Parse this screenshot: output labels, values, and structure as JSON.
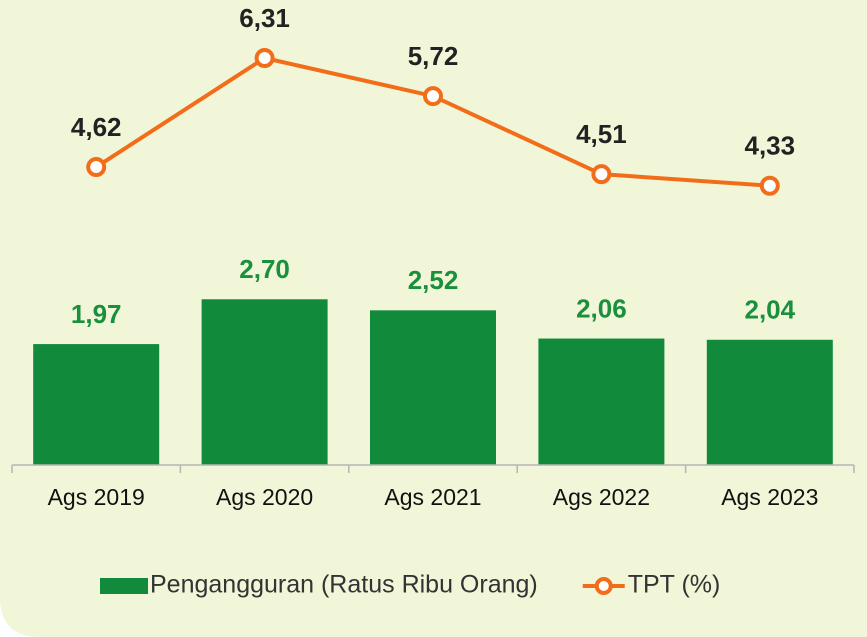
{
  "chart_data": {
    "type": "bar-line",
    "categories": [
      "Ags 2019",
      "Ags 2020",
      "Ags 2021",
      "Ags 2022",
      "Ags 2023"
    ],
    "series": [
      {
        "name": "Pengangguran (Ratus Ribu Orang)",
        "type": "bar",
        "color": "#128a3b",
        "values": [
          1.97,
          2.7,
          2.52,
          2.06,
          2.04
        ],
        "value_labels": [
          "1,97",
          "2,70",
          "2,52",
          "2,06",
          "2,04"
        ]
      },
      {
        "name": "TPT (%)",
        "type": "line",
        "axis": "y2",
        "color": "#f26d1a",
        "values": [
          4.62,
          6.31,
          5.72,
          4.51,
          4.33
        ],
        "value_labels": [
          "4,62",
          "6,31",
          "5,72",
          "4,51",
          "4,33"
        ]
      }
    ],
    "ylim": [
      0,
      7.25
    ],
    "y2lim": [
      0,
      6.9
    ]
  }
}
